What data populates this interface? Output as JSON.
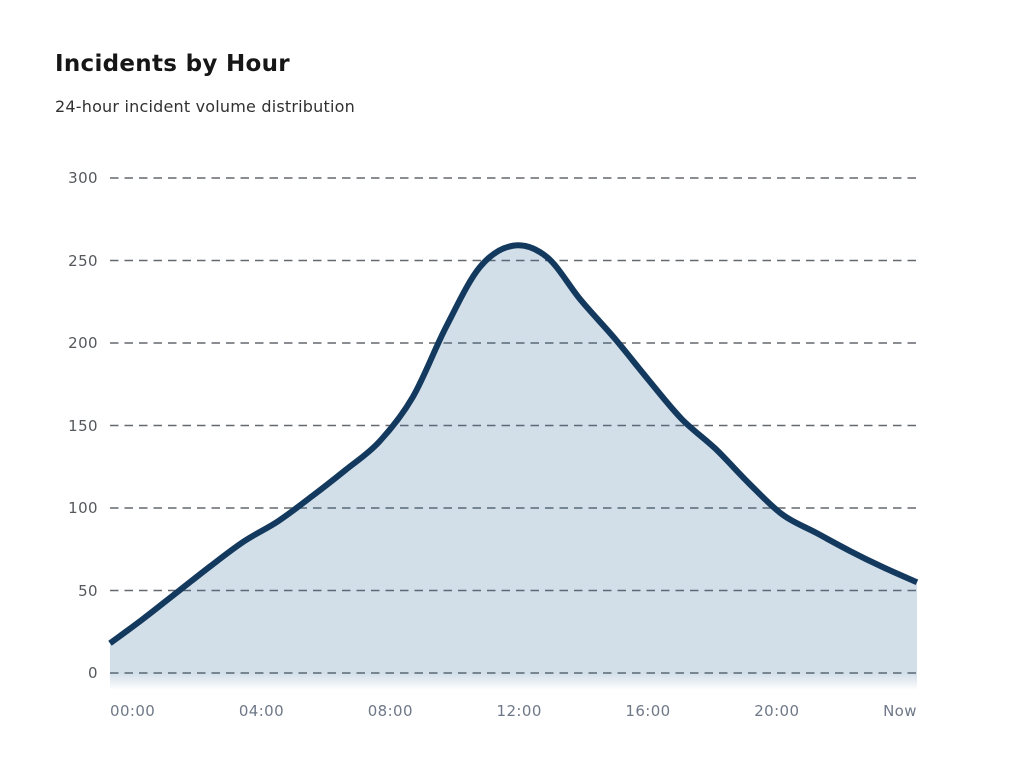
{
  "header": {
    "title": "Incidents by Hour",
    "subtitle": "24-hour incident volume distribution"
  },
  "chart_data": {
    "type": "area",
    "title": "Incidents by Hour",
    "subtitle": "24-hour incident volume distribution",
    "series_name": "Incidents",
    "x_unit": "hour",
    "x": [
      0,
      1,
      2,
      3,
      4,
      5,
      6,
      7,
      8,
      9,
      10,
      11,
      12,
      13,
      14,
      15,
      16,
      17,
      18,
      19,
      20,
      21,
      22,
      23,
      24
    ],
    "values": [
      18,
      33,
      49,
      65,
      80,
      92,
      107,
      123,
      140,
      167,
      210,
      246,
      259,
      252,
      226,
      203,
      178,
      154,
      136,
      115,
      96,
      85,
      74,
      64,
      55
    ],
    "x_tick_labels": [
      "00:00",
      "04:00",
      "08:00",
      "12:00",
      "16:00",
      "20:00",
      "Now"
    ],
    "y_ticks": [
      300,
      250,
      200,
      150,
      100,
      50,
      0
    ],
    "y_tick_labels": [
      "300",
      "250",
      "200",
      "150",
      "100",
      "50",
      "0"
    ],
    "ylim": [
      0,
      300
    ],
    "xlabel": "",
    "ylabel": "",
    "grid": "horizontal-dashed",
    "legend": "none",
    "peak_value": 259,
    "peak_hour": "12:00",
    "colors": {
      "line": "#133a5e",
      "fill": "rgba(50,105,150,0.22)",
      "grid": "#64696f",
      "y_tick_text": "#55585d",
      "x_tick_text": "#6e7888",
      "title_text": "#161616",
      "subtitle_text": "#313131",
      "background": "#ffffff"
    }
  }
}
